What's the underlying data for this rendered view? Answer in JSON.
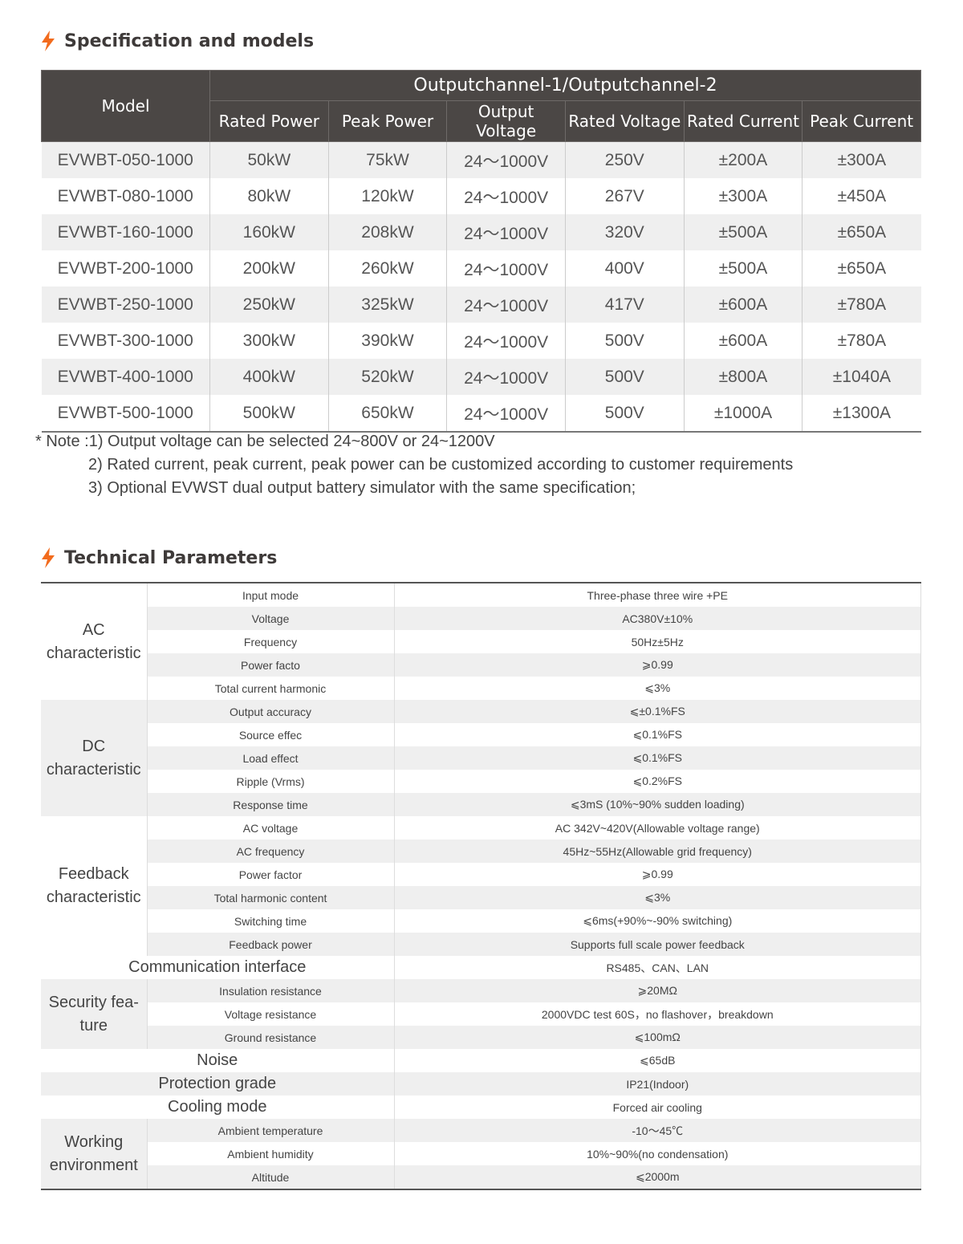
{
  "colors": {
    "accent": "#f26b1d",
    "header_bg": "#4b4745",
    "stripe": "#efefef"
  },
  "section1": {
    "icon": "lightning-icon",
    "title": "Specification and models"
  },
  "models_table": {
    "model_header": "Model",
    "group_header": "Outputchannel-1/Outputchannel-2",
    "columns": [
      "Rated Power",
      "Peak Power",
      "Output Voltage",
      "Rated Voltage",
      "Rated Current",
      "Peak Current"
    ],
    "rows": [
      [
        "EVWBT-050-1000",
        "50kW",
        "75kW",
        "24～1000V",
        "250V",
        "±200A",
        "±300A"
      ],
      [
        "EVWBT-080-1000",
        "80kW",
        "120kW",
        "24～1000V",
        "267V",
        "±300A",
        "±450A"
      ],
      [
        "EVWBT-160-1000",
        "160kW",
        "208kW",
        "24～1000V",
        "320V",
        "±500A",
        "±650A"
      ],
      [
        "EVWBT-200-1000",
        "200kW",
        "260kW",
        "24～1000V",
        "400V",
        "±500A",
        "±650A"
      ],
      [
        "EVWBT-250-1000",
        "250kW",
        "325kW",
        "24～1000V",
        "417V",
        "±600A",
        "±780A"
      ],
      [
        "EVWBT-300-1000",
        "300kW",
        "390kW",
        "24～1000V",
        "500V",
        "±600A",
        "±780A"
      ],
      [
        "EVWBT-400-1000",
        "400kW",
        "520kW",
        "24～1000V",
        "500V",
        "±800A",
        "±1040A"
      ],
      [
        "EVWBT-500-1000",
        "500kW",
        "650kW",
        "24～1000V",
        "500V",
        "±1000A",
        "±1300A"
      ]
    ]
  },
  "notes": {
    "line1": "* Note :1) Output voltage can be selected 24~800V or 24~1200V",
    "line2": "2) Rated current, peak current, peak power can be customized according to customer requirements",
    "line3": "3) Optional EVWST dual output battery simulator with the same specification;"
  },
  "section2": {
    "icon": "lightning-icon",
    "title": "Technical Parameters"
  },
  "params": [
    {
      "group": "AC characteristic",
      "shaded": false,
      "items": [
        [
          "Input mode",
          "Three-phase three wire +PE"
        ],
        [
          "Voltage",
          "AC380V±10%"
        ],
        [
          "Frequency",
          "50Hz±5Hz"
        ],
        [
          "Power facto",
          "⩾0.99"
        ],
        [
          "Total current harmonic",
          "⩽3%"
        ]
      ]
    },
    {
      "group": "DC characteristic",
      "shaded": true,
      "items": [
        [
          "Output accuracy",
          "⩽±0.1%FS"
        ],
        [
          "Source effec",
          "⩽0.1%FS"
        ],
        [
          "Load effect",
          "⩽0.1%FS"
        ],
        [
          "Ripple (Vrms)",
          "⩽0.2%FS"
        ],
        [
          "Response time",
          "⩽3mS (10%~90% sudden loading)"
        ]
      ]
    },
    {
      "group": "Feedback characteristic",
      "shaded": false,
      "items": [
        [
          "AC voltage",
          "AC 342V~420V(Allowable voltage range)"
        ],
        [
          "AC frequency",
          "45Hz~55Hz(Allowable grid frequency)"
        ],
        [
          "Power factor",
          "⩾0.99"
        ],
        [
          "Total harmonic content",
          "⩽3%"
        ],
        [
          "Switching time",
          "⩽6ms(+90%~-90% switching)"
        ],
        [
          "Feedback power",
          "Supports full scale power feedback"
        ]
      ]
    },
    {
      "group": "Communication interface",
      "single": true,
      "value": "RS485、CAN、LAN"
    },
    {
      "group": "Security fea-ture",
      "shaded": true,
      "items": [
        [
          "Insulation resistance",
          "⩾20MΩ"
        ],
        [
          "Voltage resistance",
          "2000VDC test 60S，no flashover，breakdown"
        ],
        [
          "Ground resistance",
          "⩽100mΩ"
        ]
      ]
    },
    {
      "group": "Noise",
      "single": true,
      "value": "⩽65dB"
    },
    {
      "group": "Protection grade",
      "single": true,
      "value": "IP21(Indoor)"
    },
    {
      "group": "Cooling mode",
      "single": true,
      "value": "Forced air cooling"
    },
    {
      "group": "Working environment",
      "shaded": true,
      "items": [
        [
          "Ambient temperature",
          "-10～45℃"
        ],
        [
          "Ambient humidity",
          "10%~90%(no condensation)"
        ],
        [
          "Altitude",
          "⩽2000m"
        ]
      ]
    }
  ]
}
